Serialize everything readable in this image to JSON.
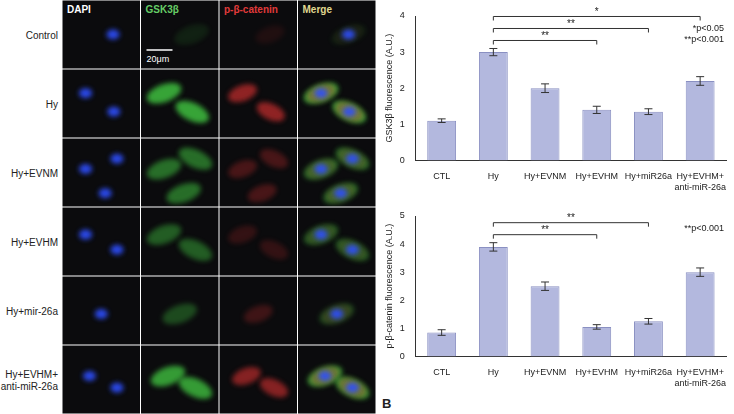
{
  "image_grid": {
    "columns": [
      {
        "label": "DAPI",
        "color": "#ffffff"
      },
      {
        "label": "GSK3β",
        "color": "#66cc66"
      },
      {
        "label": "p-β-catenin",
        "color": "#e03a3a"
      },
      {
        "label": "Merge",
        "color": "#e0d890"
      }
    ],
    "rows": [
      "Control",
      "Hy",
      "Hy+EVNM",
      "Hy+EVHM",
      "Hy+mir-26a",
      "Hy+EVHM+ anti-miR-26a"
    ],
    "scale_bar": "20μm"
  },
  "panel_letter": "B",
  "chart_data": [
    {
      "type": "bar",
      "ylabel": "GSK3β fluorescence (A.U.)",
      "categories": [
        "CTL",
        "Hy",
        "Hy+EVNM",
        "Hy+EVHM",
        "Hy+miR26a",
        "Hy+EVHM+ anti-miR-26a"
      ],
      "values": [
        1.1,
        3.0,
        2.0,
        1.4,
        1.35,
        2.2
      ],
      "errors": [
        0.05,
        0.1,
        0.12,
        0.1,
        0.08,
        0.12
      ],
      "color": "#b3b8de",
      "ylim": [
        0,
        4
      ],
      "yticks": [
        0,
        1,
        2,
        3,
        4
      ],
      "grid": false,
      "annotations": [
        "*p<0.05",
        "**p<0.001"
      ],
      "significance": [
        {
          "from": "Hy",
          "to": "Hy+EVHM",
          "label": "**"
        },
        {
          "from": "Hy",
          "to": "Hy+miR26a",
          "label": "**"
        },
        {
          "from": "Hy",
          "to": "Hy+EVHM+ anti-miR-26a",
          "label": "*"
        }
      ]
    },
    {
      "type": "bar",
      "ylabel": "p-β-catenin fluorescence (A.U.)",
      "categories": [
        "CTL",
        "Hy",
        "Hy+EVNM",
        "Hy+EVHM",
        "Hy+miR26a",
        "Hy+EVHM+ anti-miR-26a"
      ],
      "values": [
        0.85,
        3.9,
        2.5,
        1.05,
        1.25,
        3.0
      ],
      "errors": [
        0.1,
        0.15,
        0.15,
        0.08,
        0.1,
        0.15
      ],
      "color": "#b3b8de",
      "ylim": [
        0,
        5
      ],
      "yticks": [
        0,
        1,
        2,
        3,
        4,
        5
      ],
      "grid": false,
      "annotations": [
        "**p<0.001"
      ],
      "significance": [
        {
          "from": "Hy",
          "to": "Hy+EVHM",
          "label": "**"
        },
        {
          "from": "Hy",
          "to": "Hy+miR26a",
          "label": "**"
        }
      ]
    }
  ]
}
